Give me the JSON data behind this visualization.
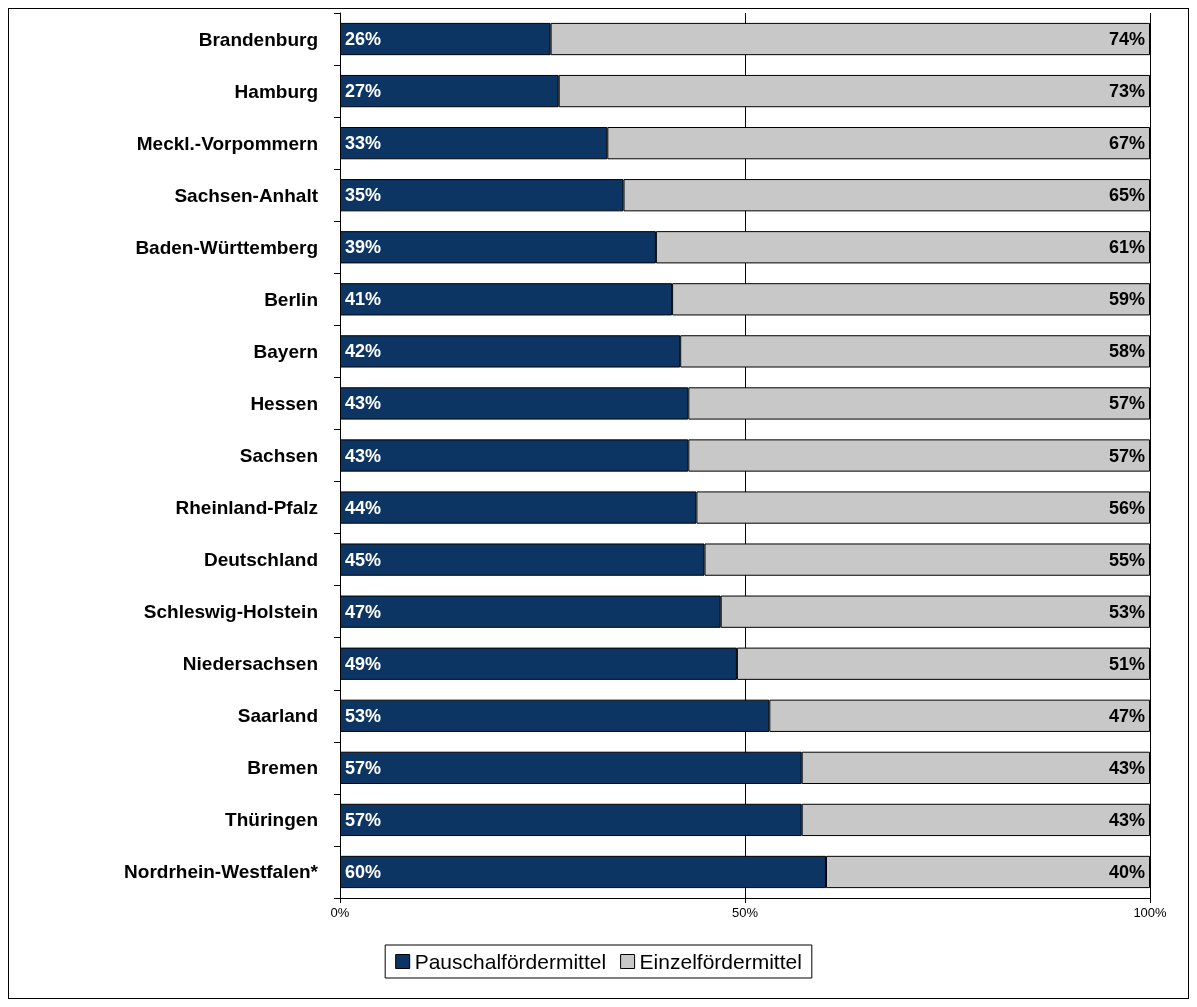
{
  "chart_data": {
    "type": "bar",
    "orientation": "horizontal",
    "stacked": true,
    "categories": [
      "Brandenburg",
      "Hamburg",
      "Meckl.-Vorpommern",
      "Sachsen-Anhalt",
      "Baden-Württemberg",
      "Berlin",
      "Bayern",
      "Hessen",
      "Sachsen",
      "Rheinland-Pfalz",
      "Deutschland",
      "Schleswig-Holstein",
      "Niedersachsen",
      "Saarland",
      "Bremen",
      "Thüringen",
      "Nordrhein-Westfalen*"
    ],
    "series": [
      {
        "name": "Pauschalfördermittel",
        "color": "#0d3563",
        "values": [
          26,
          27,
          33,
          35,
          39,
          41,
          42,
          43,
          43,
          44,
          45,
          47,
          49,
          53,
          57,
          57,
          60
        ],
        "value_labels": [
          "26%",
          "27%",
          "33%",
          "35%",
          "39%",
          "41%",
          "42%",
          "43%",
          "43%",
          "44%",
          "45%",
          "47%",
          "49%",
          "53%",
          "57%",
          "57%",
          "60%"
        ]
      },
      {
        "name": "Einzelfördermittel",
        "color": "#c8c8c8",
        "values": [
          74,
          73,
          67,
          65,
          61,
          59,
          58,
          57,
          57,
          56,
          55,
          53,
          51,
          47,
          43,
          43,
          40
        ],
        "value_labels": [
          "74%",
          "73%",
          "67%",
          "65%",
          "61%",
          "59%",
          "58%",
          "57%",
          "57%",
          "56%",
          "55%",
          "53%",
          "51%",
          "47%",
          "43%",
          "43%",
          "40%"
        ]
      }
    ],
    "xlim": [
      0,
      100
    ],
    "xticks": [
      {
        "value": 0,
        "label": "0%"
      },
      {
        "value": 50,
        "label": "50%"
      },
      {
        "value": 100,
        "label": "100%"
      }
    ],
    "grid": "x",
    "legend": "bottom"
  }
}
